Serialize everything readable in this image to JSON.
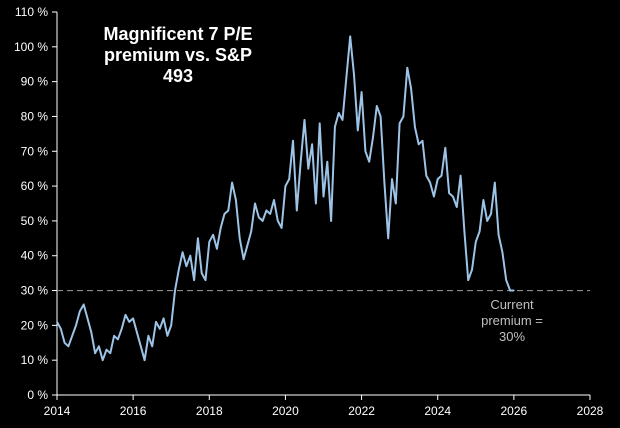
{
  "chart_data": {
    "type": "line",
    "title_lines": [
      "Magnificent 7 P/E",
      "premium vs. S&P",
      "493"
    ],
    "xlabel": "",
    "ylabel": "",
    "xlim": [
      2014,
      2028
    ],
    "ylim": [
      0,
      110
    ],
    "x_ticks": [
      2014,
      2016,
      2018,
      2020,
      2022,
      2024,
      2026,
      2028
    ],
    "x_tick_labels": [
      "2014",
      "2016",
      "2018",
      "2020",
      "2022",
      "2024",
      "2026",
      "2028"
    ],
    "y_ticks": [
      0,
      10,
      20,
      30,
      40,
      50,
      60,
      70,
      80,
      90,
      100,
      110
    ],
    "y_tick_labels": [
      "0 %",
      "10 %",
      "20 %",
      "30 %",
      "40 %",
      "50 %",
      "60 %",
      "70 %",
      "80 %",
      "90 %",
      "100 %",
      "110 %"
    ],
    "grid": false,
    "reference_line": {
      "y": 30,
      "style": "dashed",
      "color": "#8c8c8c"
    },
    "annotation_lines": [
      "Current",
      "premium =",
      "30%"
    ],
    "colors": {
      "background": "#000000",
      "line": "#9dc3e6",
      "text": "#ffffff",
      "axis": "#ffffff",
      "annotation": "#bfbfbf"
    },
    "series": [
      {
        "x": [
          2014.0,
          2014.1,
          2014.2,
          2014.3,
          2014.4,
          2014.5,
          2014.6,
          2014.7,
          2014.8,
          2014.9,
          2015.0,
          2015.1,
          2015.2,
          2015.3,
          2015.4,
          2015.5,
          2015.6,
          2015.7,
          2015.8,
          2015.9,
          2016.0,
          2016.1,
          2016.2,
          2016.3,
          2016.4,
          2016.5,
          2016.6,
          2016.7,
          2016.8,
          2016.9,
          2017.0,
          2017.1,
          2017.2,
          2017.3,
          2017.4,
          2017.5,
          2017.6,
          2017.7,
          2017.8,
          2017.9,
          2018.0,
          2018.1,
          2018.2,
          2018.3,
          2018.4,
          2018.5,
          2018.6,
          2018.7,
          2018.8,
          2018.9,
          2019.0,
          2019.1,
          2019.2,
          2019.3,
          2019.4,
          2019.5,
          2019.6,
          2019.7,
          2019.8,
          2019.9,
          2020.0,
          2020.1,
          2020.2,
          2020.3,
          2020.4,
          2020.5,
          2020.6,
          2020.7,
          2020.8,
          2020.9,
          2021.0,
          2021.1,
          2021.2,
          2021.3,
          2021.4,
          2021.5,
          2021.6,
          2021.7,
          2021.8,
          2021.9,
          2022.0,
          2022.1,
          2022.2,
          2022.3,
          2022.4,
          2022.5,
          2022.6,
          2022.7,
          2022.8,
          2022.9,
          2023.0,
          2023.1,
          2023.2,
          2023.3,
          2023.4,
          2023.5,
          2023.6,
          2023.7,
          2023.8,
          2023.9,
          2024.0,
          2024.1,
          2024.2,
          2024.3,
          2024.4,
          2024.5,
          2024.6,
          2024.7,
          2024.8,
          2024.9,
          2025.0,
          2025.1,
          2025.2,
          2025.3,
          2025.4,
          2025.5,
          2025.6,
          2025.7,
          2025.8,
          2025.9,
          2026.0
        ],
        "y": [
          21,
          19,
          15,
          14,
          17,
          20,
          24,
          26,
          22,
          18,
          12,
          14,
          10,
          13,
          12,
          17,
          16,
          19,
          23,
          21,
          22,
          18,
          14,
          10,
          17,
          14,
          21,
          19,
          22,
          17,
          20,
          30,
          36,
          41,
          37,
          40,
          33,
          45,
          35,
          33,
          44,
          46,
          42,
          48,
          52,
          53,
          61,
          56,
          45,
          39,
          43,
          47,
          55,
          51,
          50,
          53,
          52,
          56,
          50,
          48,
          60,
          62,
          73,
          53,
          67,
          79,
          65,
          72,
          55,
          78,
          57,
          67,
          50,
          77,
          81,
          79,
          91,
          103,
          92,
          76,
          87,
          70,
          67,
          74,
          83,
          80,
          61,
          45,
          62,
          55,
          78,
          80,
          94,
          88,
          77,
          72,
          73,
          63,
          61,
          57,
          62,
          63,
          71,
          58,
          57,
          54,
          63,
          47,
          33,
          36,
          44,
          47,
          56,
          50,
          52,
          61,
          46,
          41,
          33,
          30,
          30
        ]
      }
    ]
  }
}
